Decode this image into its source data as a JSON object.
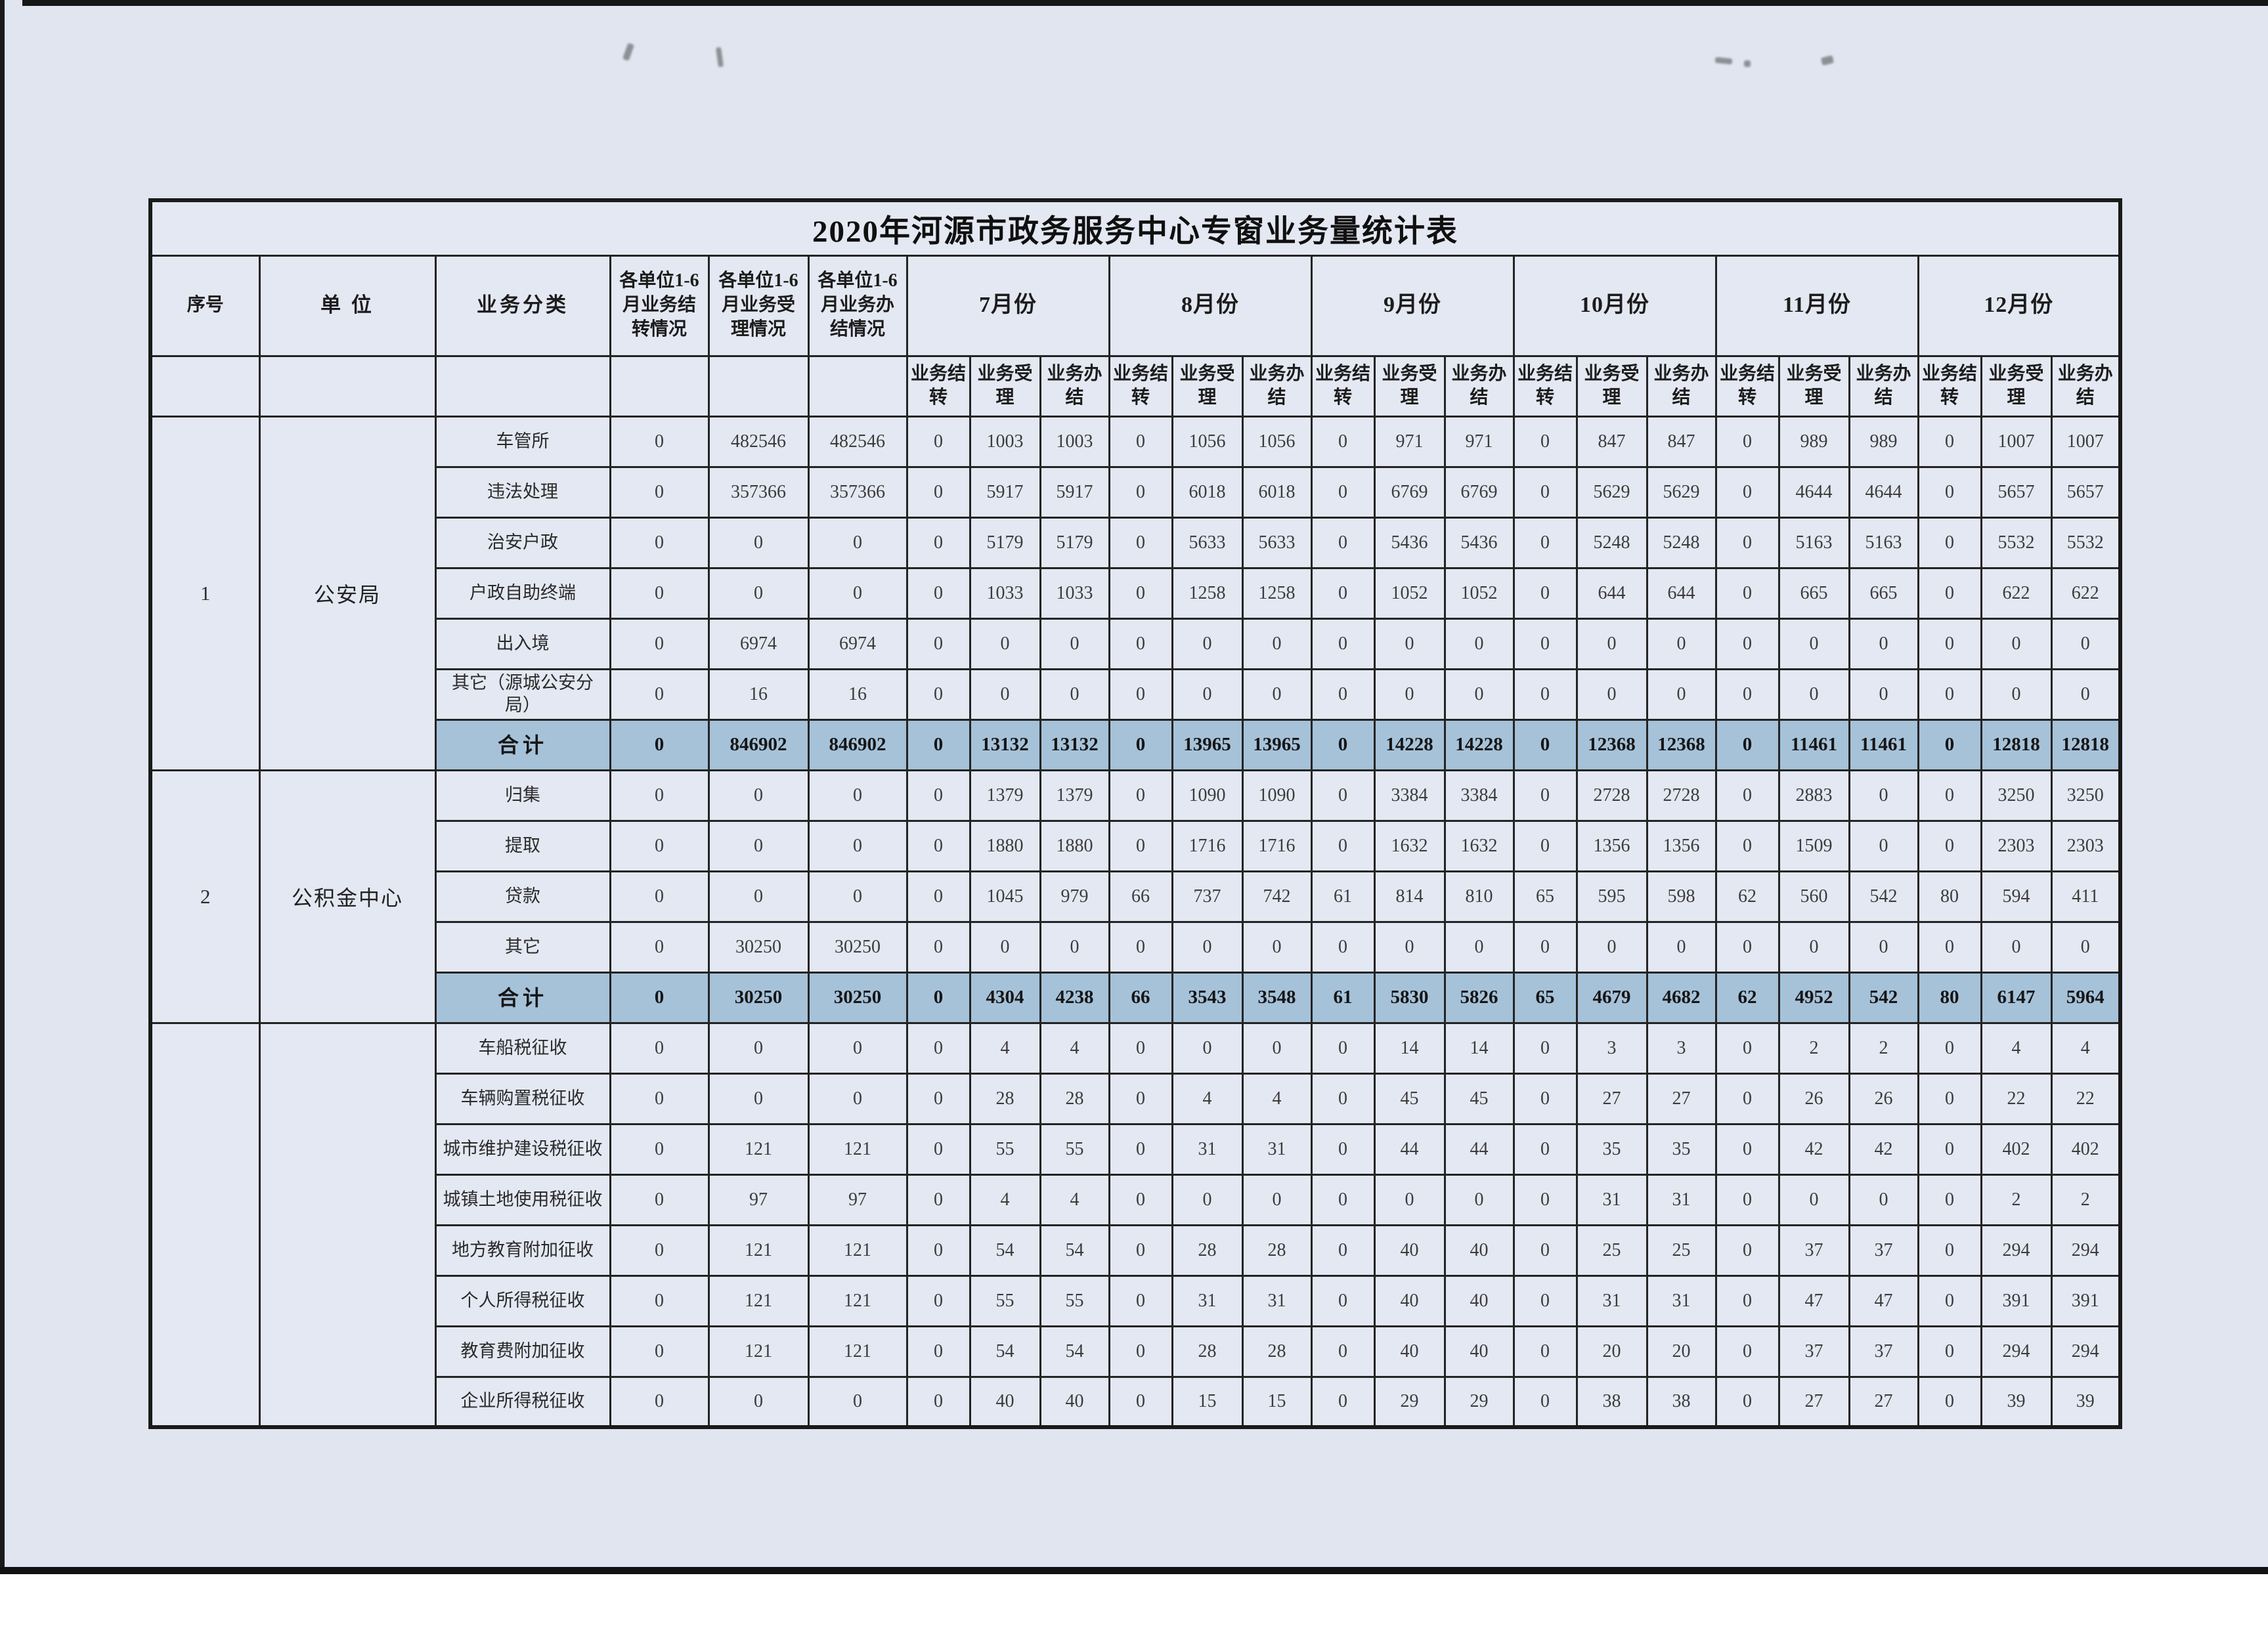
{
  "title": "2020年河源市政务服务中心专窗业务量统计表",
  "columns": {
    "seq": "序号",
    "unit": "单  位",
    "category": "业务分类",
    "carry_1_6": "各单位1-6月业务结转情况",
    "accept_1_6": "各单位1-6月业务受理情况",
    "complete_1_6": "各单位1-6月业务办结情况",
    "months": [
      "7月份",
      "8月份",
      "9月份",
      "10月份",
      "11月份",
      "12月份"
    ],
    "sub": [
      "业务结转",
      "业务受理",
      "业务办结"
    ]
  },
  "sections": [
    {
      "seq": "1",
      "unit": "公安局",
      "rows": [
        {
          "category": "车管所",
          "values": [
            0,
            482546,
            482546,
            0,
            1003,
            1003,
            0,
            1056,
            1056,
            0,
            971,
            971,
            0,
            847,
            847,
            0,
            989,
            989,
            0,
            1007,
            1007
          ]
        },
        {
          "category": "违法处理",
          "values": [
            0,
            357366,
            357366,
            0,
            5917,
            5917,
            0,
            6018,
            6018,
            0,
            6769,
            6769,
            0,
            5629,
            5629,
            0,
            4644,
            4644,
            0,
            5657,
            5657
          ]
        },
        {
          "category": "治安户政",
          "values": [
            0,
            0,
            0,
            0,
            5179,
            5179,
            0,
            5633,
            5633,
            0,
            5436,
            5436,
            0,
            5248,
            5248,
            0,
            5163,
            5163,
            0,
            5532,
            5532
          ]
        },
        {
          "category": "户政自助终端",
          "values": [
            0,
            0,
            0,
            0,
            1033,
            1033,
            0,
            1258,
            1258,
            0,
            1052,
            1052,
            0,
            644,
            644,
            0,
            665,
            665,
            0,
            622,
            622
          ]
        },
        {
          "category": "出入境",
          "values": [
            0,
            6974,
            6974,
            0,
            0,
            0,
            0,
            0,
            0,
            0,
            0,
            0,
            0,
            0,
            0,
            0,
            0,
            0,
            0,
            0,
            0
          ]
        },
        {
          "category": "其它（源城公安分局）",
          "values": [
            0,
            16,
            16,
            0,
            0,
            0,
            0,
            0,
            0,
            0,
            0,
            0,
            0,
            0,
            0,
            0,
            0,
            0,
            0,
            0,
            0
          ]
        }
      ],
      "total": {
        "category": "合计",
        "values": [
          0,
          846902,
          846902,
          0,
          13132,
          13132,
          0,
          13965,
          13965,
          0,
          14228,
          14228,
          0,
          12368,
          12368,
          0,
          11461,
          11461,
          0,
          12818,
          12818
        ]
      }
    },
    {
      "seq": "2",
      "unit": "公积金中心",
      "rows": [
        {
          "category": "归集",
          "values": [
            0,
            0,
            0,
            0,
            1379,
            1379,
            0,
            1090,
            1090,
            0,
            3384,
            3384,
            0,
            2728,
            2728,
            0,
            2883,
            0,
            0,
            3250,
            3250
          ]
        },
        {
          "category": "提取",
          "values": [
            0,
            0,
            0,
            0,
            1880,
            1880,
            0,
            1716,
            1716,
            0,
            1632,
            1632,
            0,
            1356,
            1356,
            0,
            1509,
            0,
            0,
            2303,
            2303
          ]
        },
        {
          "category": "贷款",
          "values": [
            0,
            0,
            0,
            0,
            1045,
            979,
            66,
            737,
            742,
            61,
            814,
            810,
            65,
            595,
            598,
            62,
            560,
            542,
            80,
            594,
            411
          ]
        },
        {
          "category": "其它",
          "values": [
            0,
            30250,
            30250,
            0,
            0,
            0,
            0,
            0,
            0,
            0,
            0,
            0,
            0,
            0,
            0,
            0,
            0,
            0,
            0,
            0,
            0
          ]
        }
      ],
      "total": {
        "category": "合计",
        "values": [
          0,
          30250,
          30250,
          0,
          4304,
          4238,
          66,
          3543,
          3548,
          61,
          5830,
          5826,
          65,
          4679,
          4682,
          62,
          4952,
          542,
          80,
          6147,
          5964
        ]
      }
    },
    {
      "seq": "",
      "unit": "",
      "rows": [
        {
          "category": "车船税征收",
          "values": [
            0,
            0,
            0,
            0,
            4,
            4,
            0,
            0,
            0,
            0,
            14,
            14,
            0,
            3,
            3,
            0,
            2,
            2,
            0,
            4,
            4
          ]
        },
        {
          "category": "车辆购置税征收",
          "values": [
            0,
            0,
            0,
            0,
            28,
            28,
            0,
            4,
            4,
            0,
            45,
            45,
            0,
            27,
            27,
            0,
            26,
            26,
            0,
            22,
            22
          ]
        },
        {
          "category": "城市维护建设税征收",
          "values": [
            0,
            121,
            121,
            0,
            55,
            55,
            0,
            31,
            31,
            0,
            44,
            44,
            0,
            35,
            35,
            0,
            42,
            42,
            0,
            402,
            402
          ]
        },
        {
          "category": "城镇土地使用税征收",
          "values": [
            0,
            97,
            97,
            0,
            4,
            4,
            0,
            0,
            0,
            0,
            0,
            0,
            0,
            31,
            31,
            0,
            0,
            0,
            0,
            2,
            2
          ]
        },
        {
          "category": "地方教育附加征收",
          "values": [
            0,
            121,
            121,
            0,
            54,
            54,
            0,
            28,
            28,
            0,
            40,
            40,
            0,
            25,
            25,
            0,
            37,
            37,
            0,
            294,
            294
          ]
        },
        {
          "category": "个人所得税征收",
          "values": [
            0,
            121,
            121,
            0,
            55,
            55,
            0,
            31,
            31,
            0,
            40,
            40,
            0,
            31,
            31,
            0,
            47,
            47,
            0,
            391,
            391
          ]
        },
        {
          "category": "教育费附加征收",
          "values": [
            0,
            121,
            121,
            0,
            54,
            54,
            0,
            28,
            28,
            0,
            40,
            40,
            0,
            20,
            20,
            0,
            37,
            37,
            0,
            294,
            294
          ]
        },
        {
          "category": "企业所得税征收",
          "values": [
            0,
            0,
            0,
            0,
            40,
            40,
            0,
            15,
            15,
            0,
            29,
            29,
            0,
            38,
            38,
            0,
            27,
            27,
            0,
            39,
            39
          ]
        }
      ]
    }
  ]
}
